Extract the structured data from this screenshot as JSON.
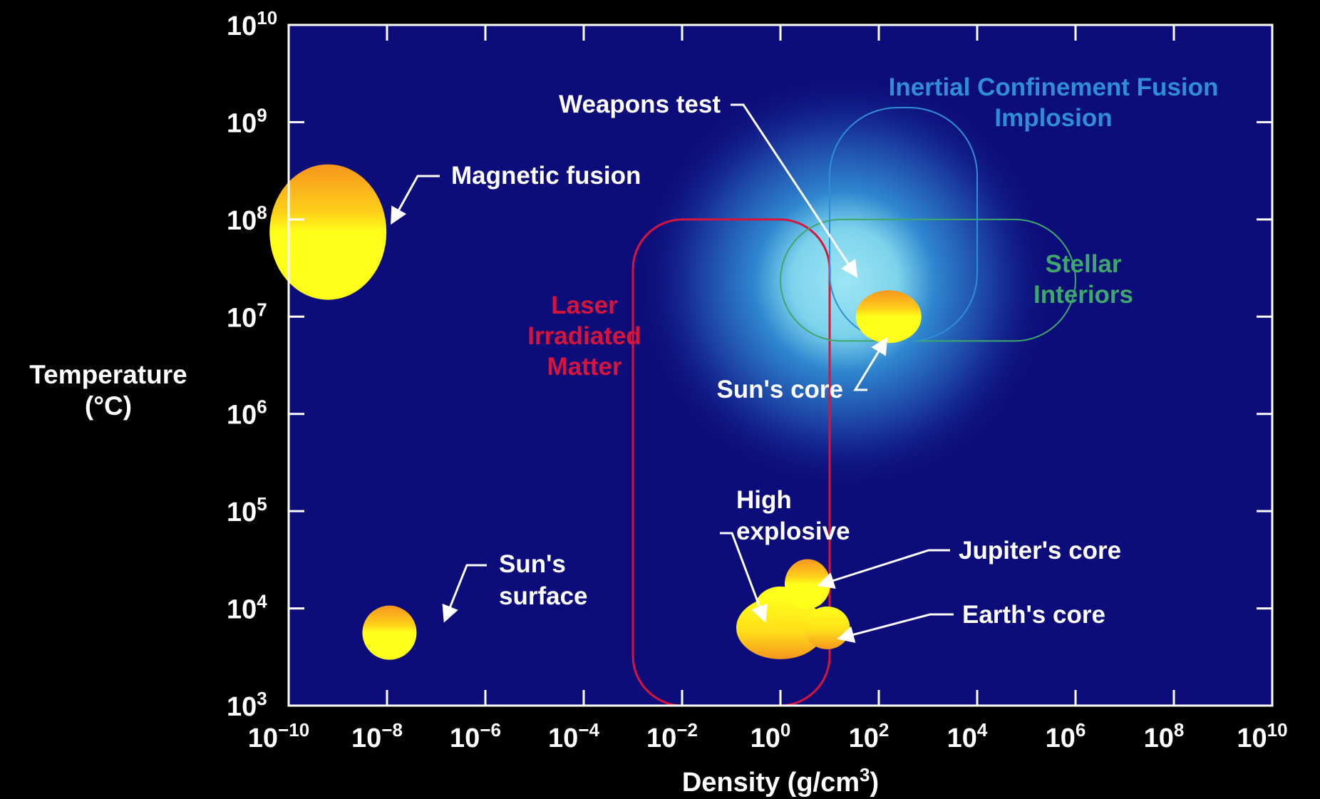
{
  "chart_data": {
    "type": "scatter",
    "title": "",
    "xlabel": "Density (g/cm³)",
    "ylabel": "Temperature (°C)",
    "xlabel_base": "Density (g/cm",
    "xlabel_sup": "3",
    "xlabel_end": ")",
    "ylabel_line1": "Temperature",
    "ylabel_line2": "(°C)",
    "x_scale": "log",
    "y_scale": "log",
    "xlim_exp": [
      -10,
      10
    ],
    "ylim_exp": [
      3,
      10
    ],
    "x_tick_exponents": [
      "−10",
      "−8",
      "−6",
      "−4",
      "−2",
      "0",
      "2",
      "4",
      "6",
      "8",
      "10"
    ],
    "y_tick_exponents": [
      "10",
      "9",
      "8",
      "7",
      "6",
      "5",
      "4",
      "3"
    ],
    "tick_base": "10",
    "grid": false,
    "colors": {
      "background": "#000000",
      "plot_area": "#0c0c7a",
      "axis": "#ffffff",
      "text": "#ffffff",
      "laser_region": "#d9143a",
      "stellar_region": "#3ea86a",
      "icf_region": "#2f8fd6",
      "blob_yellow": "#ffff1a",
      "blob_orange": "#f7961e"
    },
    "regions": [
      {
        "id": "laser",
        "label_lines": [
          "Laser",
          "Irradiated",
          "Matter"
        ],
        "x_exp": [
          -3,
          1
        ],
        "y_exp": [
          3,
          8
        ]
      },
      {
        "id": "stellar",
        "label_lines": [
          "Stellar",
          "Interiors"
        ],
        "x_exp": [
          0,
          6
        ],
        "y_exp": [
          6.75,
          8
        ]
      },
      {
        "id": "icf",
        "label_lines": [
          "Inertial Confinement Fusion",
          "Implosion"
        ],
        "x_exp": [
          1,
          4
        ],
        "y_exp": [
          6.75,
          9.15
        ]
      }
    ],
    "points": [
      {
        "id": "magnetic-fusion",
        "label": "Magnetic fusion",
        "x_exp": -9.2,
        "y_exp": 7.87
      },
      {
        "id": "sun-surface",
        "label_lines": [
          "Sun's",
          "surface"
        ],
        "x_exp": -7.95,
        "y_exp": 3.75
      },
      {
        "id": "sun-core",
        "label": "Sun's core",
        "x_exp": 2.2,
        "y_exp": 7.0
      },
      {
        "id": "high-explosive",
        "label_lines": [
          "High",
          "explosive"
        ],
        "x_exp": 0,
        "y_exp": 3.8
      },
      {
        "id": "jupiter-core",
        "label": "Jupiter's core",
        "x_exp": 0.55,
        "y_exp": 4.25
      },
      {
        "id": "earth-core",
        "label": "Earth's core",
        "x_exp": 0.95,
        "y_exp": 3.8
      },
      {
        "id": "weapons-test",
        "label": "Weapons test",
        "x_exp": 1.5,
        "y_exp": 7.45
      }
    ]
  }
}
